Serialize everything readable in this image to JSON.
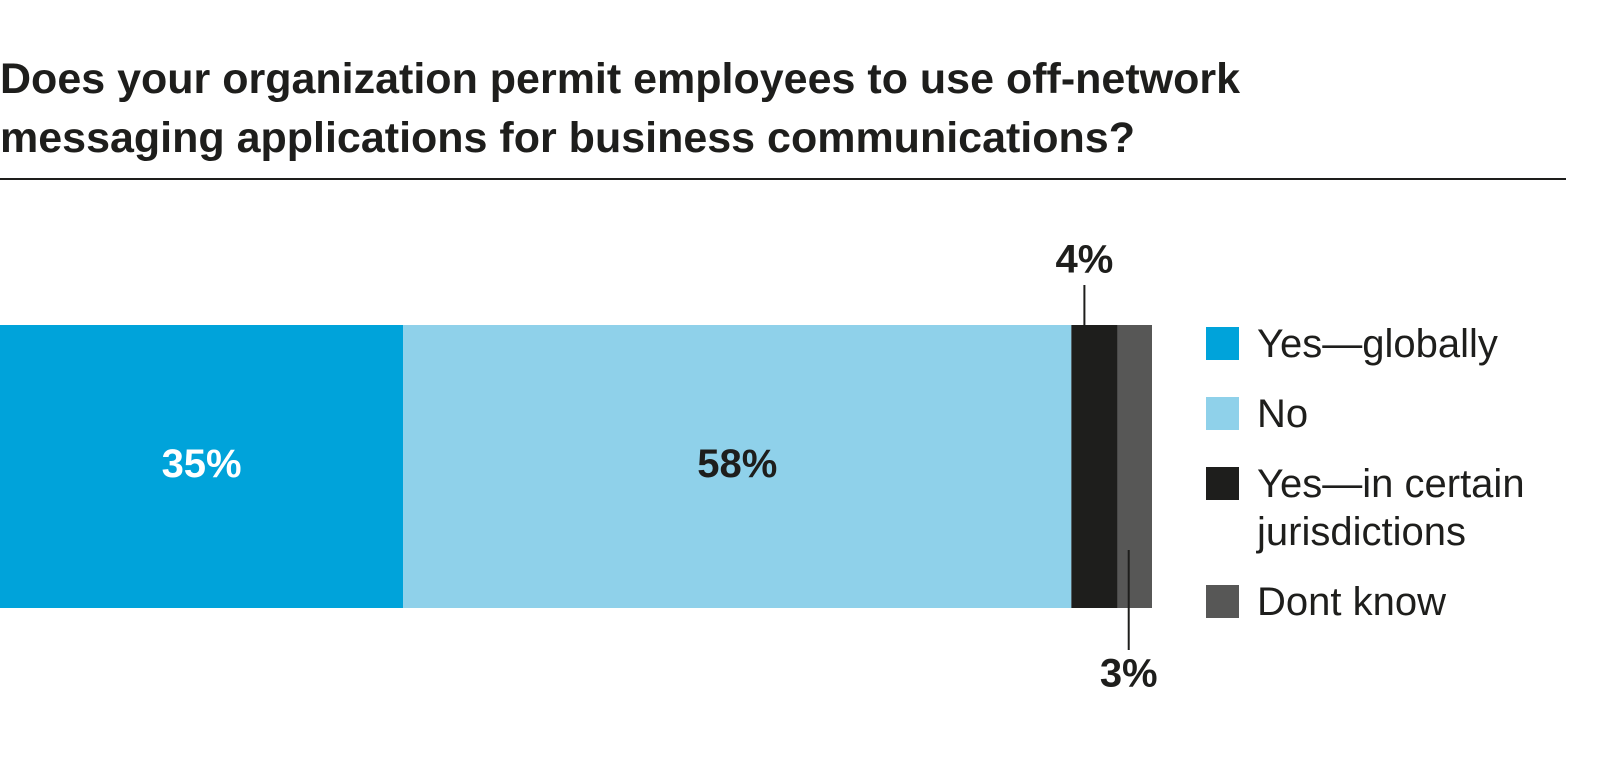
{
  "chart_data": {
    "type": "bar",
    "orientation": "horizontal",
    "stacked": true,
    "title": "Does your organization permit employees to use off-network messaging applications for business communications?",
    "series": [
      {
        "name": "Yes—globally",
        "color": "#00a3da",
        "values": [
          35
        ],
        "value_labels": [
          "35%"
        ]
      },
      {
        "name": "No",
        "color": "#8fd1ea",
        "values": [
          58
        ],
        "value_labels": [
          "58%"
        ]
      },
      {
        "name": "Yes—in certain jurisdictions",
        "color": "#1e1e1c",
        "values": [
          4
        ],
        "value_labels": [
          "4%"
        ]
      },
      {
        "name": "Dont know",
        "color": "#575756",
        "values": [
          3
        ],
        "value_labels": [
          "3%"
        ]
      }
    ]
  }
}
